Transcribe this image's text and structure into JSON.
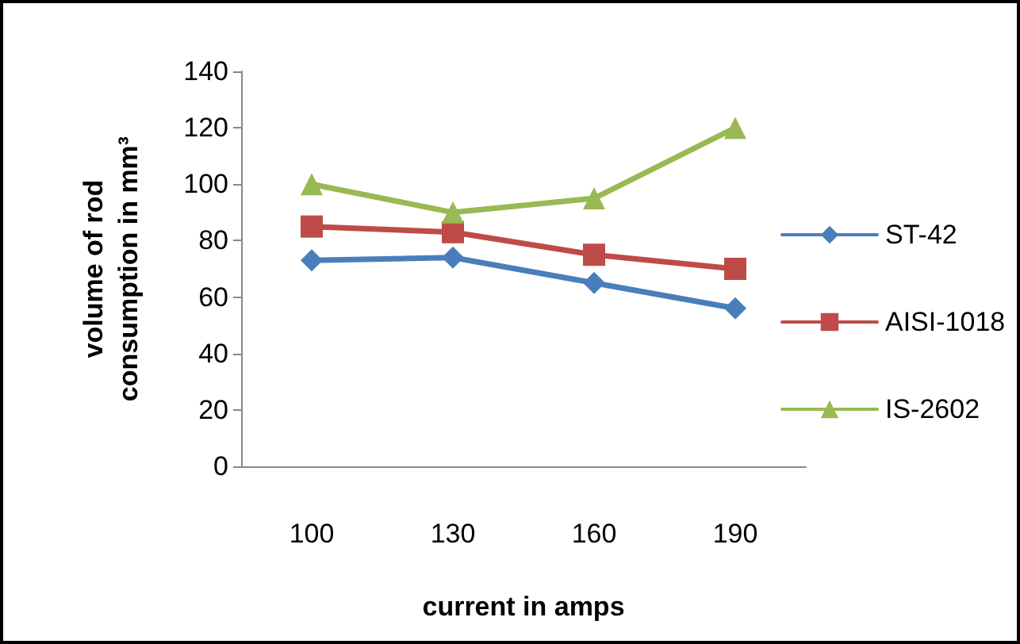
{
  "chart_data": {
    "type": "line",
    "xlabel": "current in amps",
    "ylabel": "volume of rod\nconsumption in mm³",
    "categories": [
      "100",
      "130",
      "160",
      "190"
    ],
    "series": [
      {
        "name": "ST-42",
        "color": "#4a7ebb",
        "marker": "diamond",
        "values": [
          73,
          74,
          65,
          56
        ]
      },
      {
        "name": "AISI-1018",
        "color": "#be4b48",
        "marker": "square",
        "values": [
          85,
          83,
          75,
          70
        ]
      },
      {
        "name": "IS-2602",
        "color": "#98b954",
        "marker": "triangle",
        "values": [
          100,
          90,
          95,
          120
        ]
      }
    ],
    "ylim": [
      0,
      140
    ],
    "yticks": [
      0,
      20,
      40,
      60,
      80,
      100,
      120,
      140
    ],
    "grid": false,
    "legend": "right",
    "line_style": "solid"
  }
}
